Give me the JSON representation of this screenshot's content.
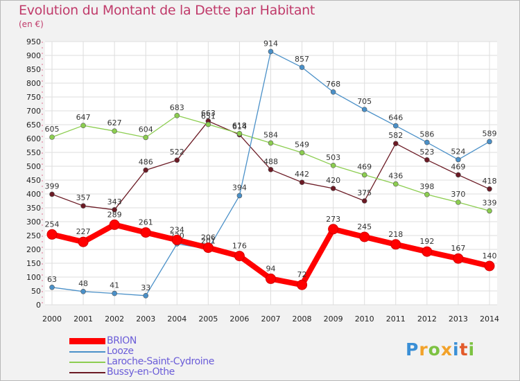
{
  "title": "Evolution du Montant de la Dette par Habitant",
  "unit": "(en €)",
  "logo": {
    "text": "Proxiti",
    "colors": [
      "#3a8fd6",
      "#f2a22a",
      "#7dc242",
      "#f2a22a",
      "#3a8fd6",
      "#e25a2a",
      "#7dc242"
    ]
  },
  "chart_data": {
    "type": "line",
    "x": [
      "2000",
      "2001",
      "2002",
      "2003",
      "2004",
      "2005",
      "2006",
      "2007",
      "2008",
      "2009",
      "2010",
      "2011",
      "2012",
      "2013",
      "2014"
    ],
    "ylim": [
      0,
      950
    ],
    "yticks": [
      0,
      50,
      100,
      150,
      200,
      250,
      300,
      350,
      400,
      450,
      500,
      550,
      600,
      650,
      700,
      750,
      800,
      850,
      900,
      950
    ],
    "grid": true,
    "legend_position": "bottom-left",
    "series": [
      {
        "name": "BRION",
        "color": "#ff0000",
        "values": [
          254,
          227,
          289,
          261,
          234,
          206,
          176,
          94,
          72,
          273,
          245,
          218,
          192,
          167,
          140
        ]
      },
      {
        "name": "Looze",
        "color": "#4a90c8",
        "values": [
          63,
          48,
          41,
          33,
          220,
          201,
          394,
          914,
          857,
          768,
          705,
          646,
          586,
          524,
          589
        ]
      },
      {
        "name": "Laroche-Saint-Cydroine",
        "color": "#8ccd50",
        "values": [
          605,
          647,
          627,
          604,
          683,
          651,
          618,
          584,
          549,
          503,
          469,
          436,
          398,
          370,
          339
        ]
      },
      {
        "name": "Bussy-en-Othe",
        "color": "#6b1a24",
        "values": [
          399,
          357,
          343,
          486,
          522,
          663,
          614,
          488,
          442,
          420,
          375,
          582,
          523,
          469,
          418
        ]
      }
    ]
  }
}
